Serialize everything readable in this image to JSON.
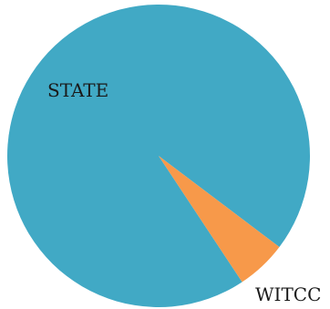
{
  "chart_data": {
    "type": "pie",
    "title": "",
    "series": [
      {
        "values": [
          94.6,
          5.4
        ]
      }
    ],
    "categories": [
      "STATE",
      "WITCC"
    ],
    "colors": [
      "#41a9c5",
      "#f7994a"
    ],
    "legend": "none"
  }
}
